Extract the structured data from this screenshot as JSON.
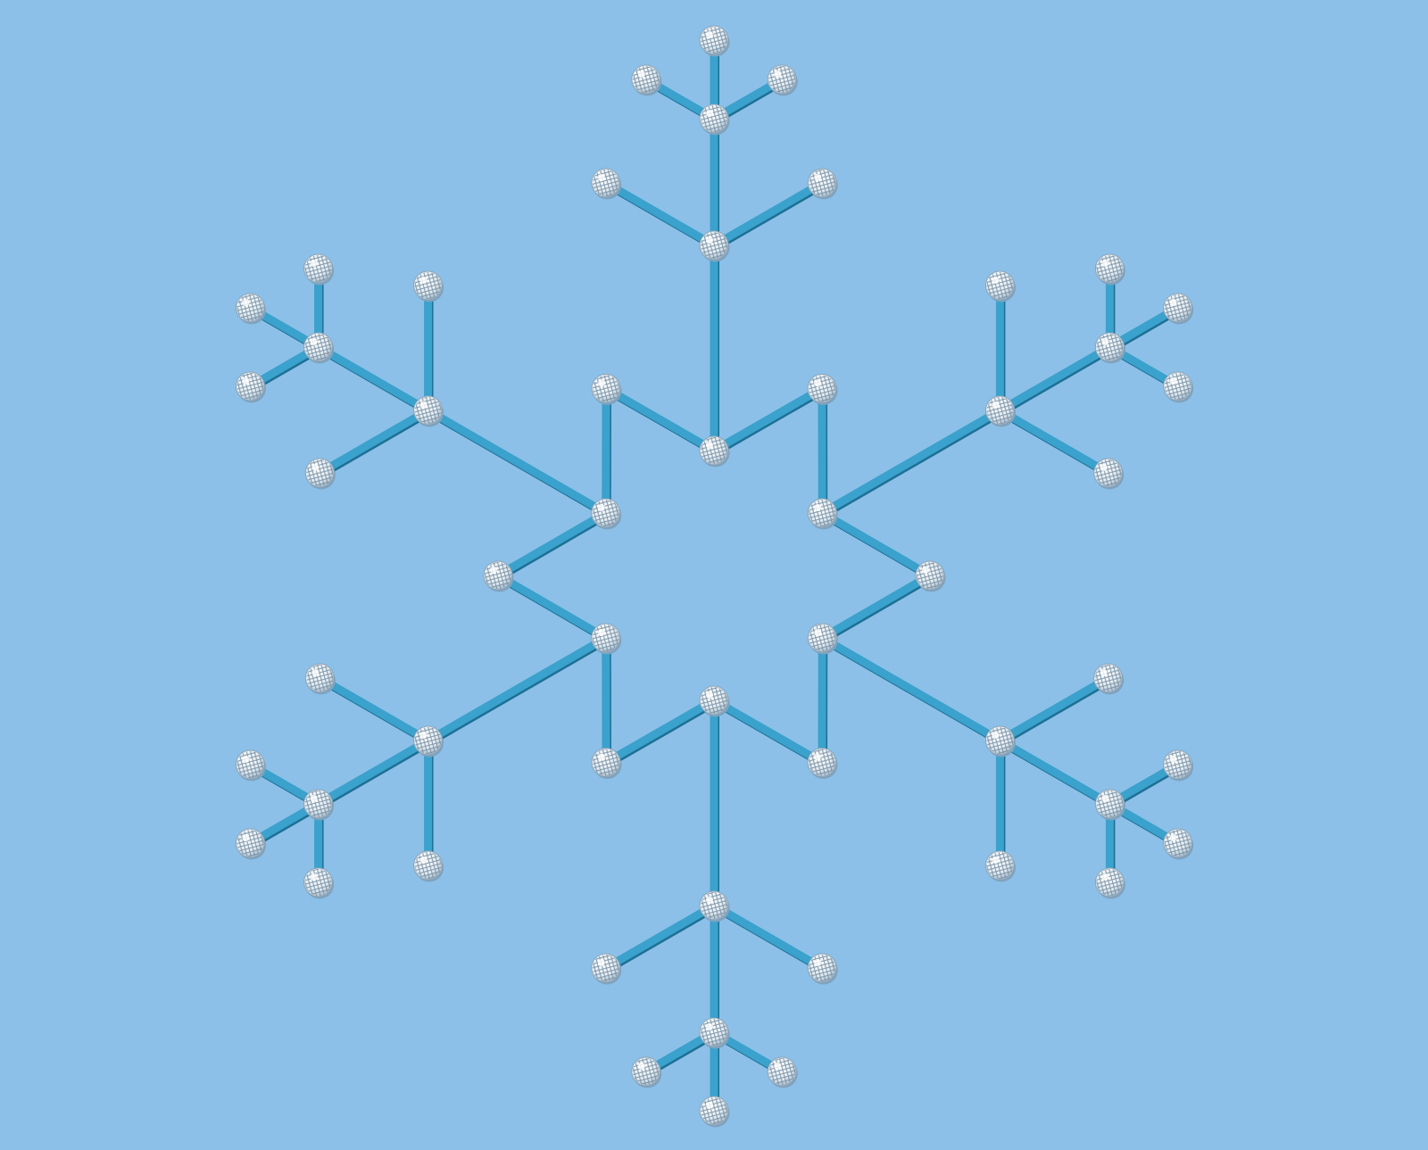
{
  "scene": {
    "background_color": "#8cc0e8",
    "rod_color": "#3aa2cc",
    "rod_shadow_color": "#1e6f94",
    "node_fill": "#f2f6fa",
    "node_mesh": "#6f8a9e",
    "node_shadow": "#7fa3bf"
  }
}
